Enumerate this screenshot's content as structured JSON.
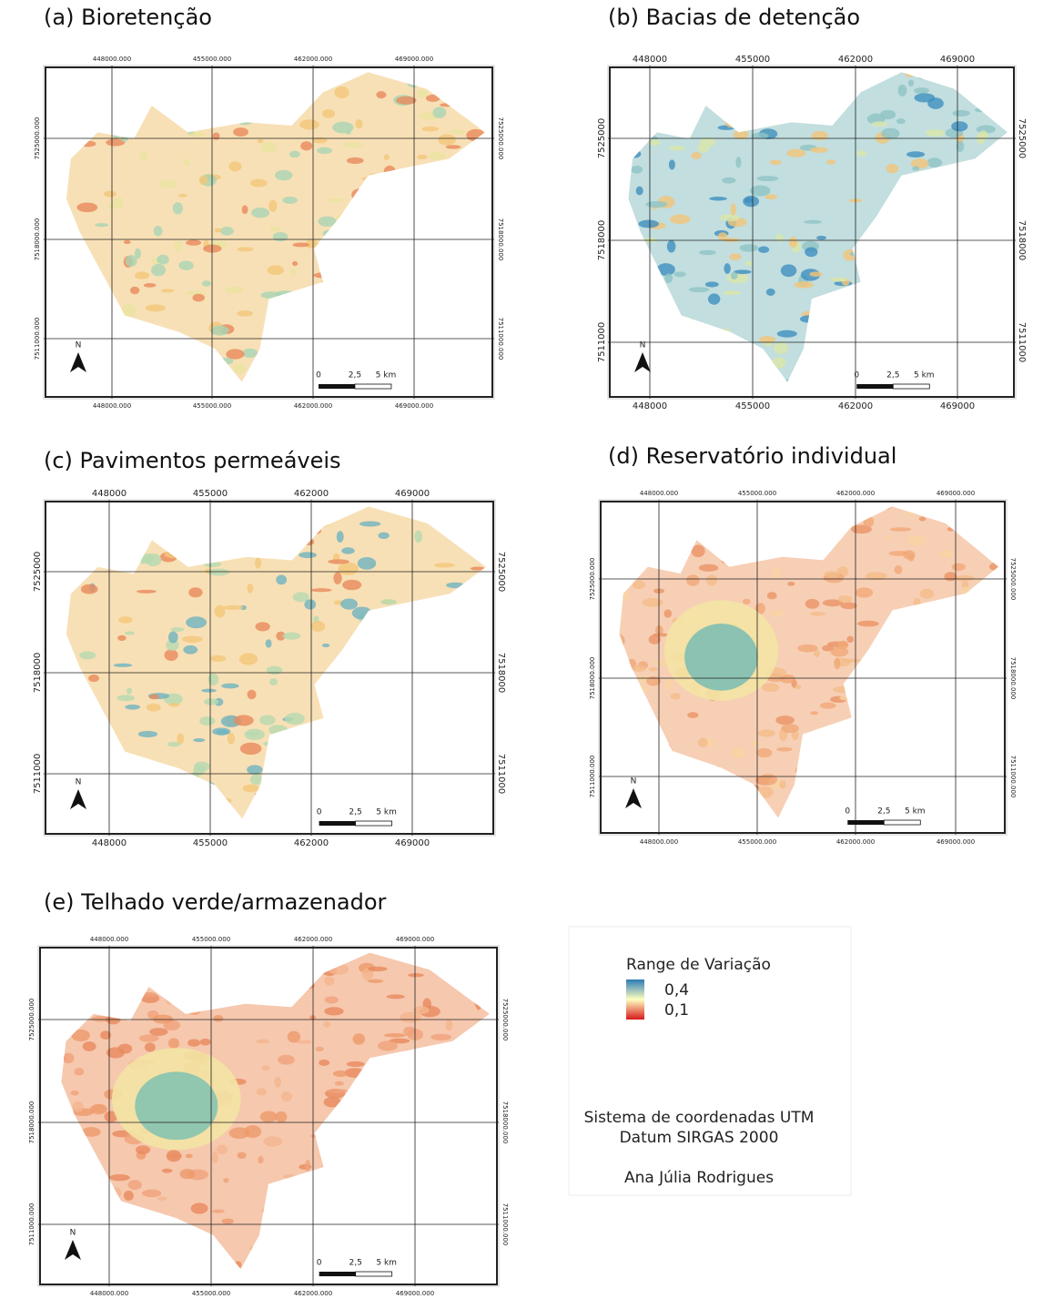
{
  "panels": [
    {
      "title": "(a) Bioretenção",
      "top_labels": [
        "448000.000",
        "455000.000",
        "462000.000",
        "469000.000"
      ],
      "bottom_labels": [
        "448000.000",
        "455000.000",
        "462000.000",
        "469000.000"
      ],
      "left_labels": [
        "7525000.000",
        "7518000.000",
        "7511000.000"
      ],
      "right_labels": [
        "7525000.000",
        "7518000.000",
        "7511000.000"
      ],
      "scale_labels": [
        "0",
        "2,5",
        "5 km"
      ],
      "north": "N"
    },
    {
      "title": "(b) Bacias de detenção",
      "top_labels": [
        "448000",
        "455000",
        "462000",
        "469000"
      ],
      "bottom_labels": [
        "448000",
        "455000",
        "462000",
        "469000"
      ],
      "left_labels": [
        "7525000",
        "7518000",
        "7511000"
      ],
      "right_labels": [
        "7525000",
        "7518000",
        "7511000"
      ],
      "scale_labels": [
        "0",
        "2,5",
        "5 km"
      ],
      "north": "N"
    },
    {
      "title": "(c) Pavimentos permeáveis",
      "top_labels": [
        "448000",
        "455000",
        "462000",
        "469000"
      ],
      "bottom_labels": [
        "448000",
        "455000",
        "462000",
        "469000"
      ],
      "left_labels": [
        "7525000",
        "7518000",
        "7511000"
      ],
      "right_labels": [
        "7525000",
        "7518000",
        "7511000"
      ],
      "scale_labels": [
        "0",
        "2,5",
        "5 km"
      ],
      "north": "N"
    },
    {
      "title": "(d) Reservatório individual",
      "top_labels": [
        "448000.000",
        "455000.000",
        "462000.000",
        "469000.000"
      ],
      "bottom_labels": [
        "448000.000",
        "455000.000",
        "462000.000",
        "469000.000"
      ],
      "left_labels": [
        "7525000.000",
        "7518000.000",
        "7511000.000"
      ],
      "right_labels": [
        "7525000.000",
        "7518000.000",
        "7511000.000"
      ],
      "scale_labels": [
        "0",
        "2,5",
        "5 km"
      ],
      "north": "N"
    },
    {
      "title": "(e) Telhado verde/armazenador",
      "top_labels": [
        "448000.000",
        "455000.000",
        "462000.000",
        "469000.000"
      ],
      "bottom_labels": [
        "448000.000",
        "455000.000",
        "462000.000",
        "469000.000"
      ],
      "left_labels": [
        "7525000.000",
        "7518000.000",
        "7511000.000"
      ],
      "right_labels": [
        "7525000.000",
        "7518000.000",
        "7511000.000"
      ],
      "scale_labels": [
        "0",
        "2,5",
        "5 km"
      ],
      "north": "N"
    }
  ],
  "legend": {
    "title": "Range de Variação",
    "labels": [
      "0,4",
      "0,1"
    ]
  },
  "notes": [
    "Sistema de coordenadas UTM",
    "Datum SIRGAS 2000",
    "Ana Júlia Rodrigues"
  ]
}
